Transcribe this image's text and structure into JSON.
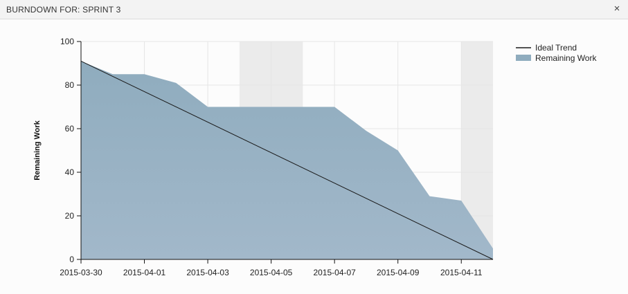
{
  "dialog": {
    "title": "BURNDOWN FOR: SPRINT 3",
    "close_glyph": "×"
  },
  "colors": {
    "remaining_fill": "#8facbe",
    "remaining_fill_light": "#a2b8ca",
    "ideal_line": "#1a1a1a",
    "weekend_band": "#ebebeb",
    "grid": "#e6e6e6"
  },
  "chart_data": {
    "type": "area",
    "ylabel": "Remaining Work",
    "xlabel": "",
    "ylim": [
      0,
      100
    ],
    "yticks": [
      0,
      20,
      40,
      60,
      80,
      100
    ],
    "x": [
      "2015-03-30",
      "2015-03-31",
      "2015-04-01",
      "2015-04-02",
      "2015-04-03",
      "2015-04-04",
      "2015-04-05",
      "2015-04-06",
      "2015-04-07",
      "2015-04-08",
      "2015-04-09",
      "2015-04-10",
      "2015-04-11",
      "2015-04-12"
    ],
    "xtick_labels": [
      "2015-03-30",
      "2015-04-01",
      "2015-04-03",
      "2015-04-05",
      "2015-04-07",
      "2015-04-09",
      "2015-04-11"
    ],
    "weekends": [
      [
        "2015-04-04",
        "2015-04-06"
      ],
      [
        "2015-04-11",
        "2015-04-13"
      ]
    ],
    "grid": true,
    "legend_position": "top-right",
    "series": [
      {
        "name": "Ideal Trend",
        "kind": "line",
        "x": [
          "2015-03-30",
          "2015-04-12"
        ],
        "values": [
          91,
          0
        ]
      },
      {
        "name": "Remaining Work",
        "kind": "area",
        "values": [
          91,
          85,
          85,
          81,
          70,
          70,
          70,
          70,
          70,
          59,
          50,
          29,
          27,
          5
        ]
      }
    ]
  }
}
